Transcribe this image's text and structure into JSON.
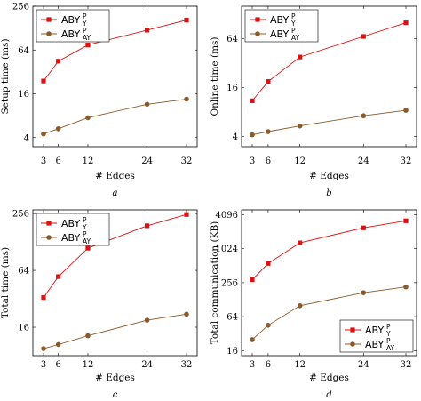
{
  "colors": {
    "series1": "#dd1111",
    "series2": "#8b5a2b",
    "axis": "#000000"
  },
  "chart_data": [
    {
      "type": "line",
      "panel_label": "a",
      "xlabel": "# Edges",
      "ylabel": "Setup time (ms)",
      "log_y": true,
      "x": [
        3,
        6,
        12,
        24,
        32
      ],
      "xticks": [
        "3",
        "6",
        "12",
        "24",
        "32"
      ],
      "yticks": [
        "4",
        "16",
        "64",
        "256"
      ],
      "ylim": [
        3,
        256
      ],
      "legend_position": "top-left",
      "series": [
        {
          "name_base": "ABY",
          "name_sub": "Y",
          "name_sup": "P",
          "values": [
            24,
            45,
            75,
            120,
            165
          ]
        },
        {
          "name_base": "ABY",
          "name_sub": "AY",
          "name_sup": "P",
          "values": [
            4.5,
            5.3,
            7.5,
            11.5,
            13.5
          ]
        }
      ]
    },
    {
      "type": "line",
      "panel_label": "b",
      "xlabel": "# Edges",
      "ylabel": "Online time (ms)",
      "log_y": true,
      "x": [
        3,
        6,
        12,
        24,
        32
      ],
      "xticks": [
        "3",
        "6",
        "12",
        "24",
        "32"
      ],
      "yticks": [
        "4",
        "16",
        "64"
      ],
      "ylim": [
        3,
        160
      ],
      "legend_position": "top-left",
      "series": [
        {
          "name_base": "ABY",
          "name_sub": "Y",
          "name_sup": "P",
          "values": [
            11,
            19,
            38,
            68,
            100
          ]
        },
        {
          "name_base": "ABY",
          "name_sub": "AY",
          "name_sup": "P",
          "values": [
            4.2,
            4.6,
            5.4,
            7.2,
            8.4
          ]
        }
      ]
    },
    {
      "type": "line",
      "panel_label": "c",
      "xlabel": "# Edges",
      "ylabel": "Total time (ms)",
      "log_y": true,
      "x": [
        3,
        6,
        12,
        24,
        32
      ],
      "xticks": [
        "3",
        "6",
        "12",
        "24",
        "32"
      ],
      "yticks": [
        "16",
        "64",
        "256"
      ],
      "ylim": [
        8,
        280
      ],
      "legend_position": "top-left",
      "series": [
        {
          "name_base": "ABY",
          "name_sub": "Y",
          "name_sup": "P",
          "values": [
            33,
            55,
            110,
            190,
            250
          ]
        },
        {
          "name_base": "ABY",
          "name_sub": "AY",
          "name_sup": "P",
          "values": [
            9.5,
            10.5,
            13,
            19,
            22
          ]
        }
      ]
    },
    {
      "type": "line",
      "panel_label": "d",
      "xlabel": "# Edges",
      "ylabel": "Total communication (KB)",
      "log_y": true,
      "x": [
        3,
        6,
        12,
        24,
        32
      ],
      "xticks": [
        "3",
        "6",
        "12",
        "24",
        "32"
      ],
      "yticks": [
        "16",
        "64",
        "256",
        "1024",
        "4096"
      ],
      "ylim": [
        13,
        5000
      ],
      "legend_position": "bottom-right",
      "series": [
        {
          "name_base": "ABY",
          "name_sub": "Y",
          "name_sup": "P",
          "values": [
            290,
            560,
            1300,
            2400,
            3200
          ]
        },
        {
          "name_base": "ABY",
          "name_sub": "AY",
          "name_sup": "P",
          "values": [
            25,
            45,
            100,
            170,
            215
          ]
        }
      ]
    }
  ]
}
